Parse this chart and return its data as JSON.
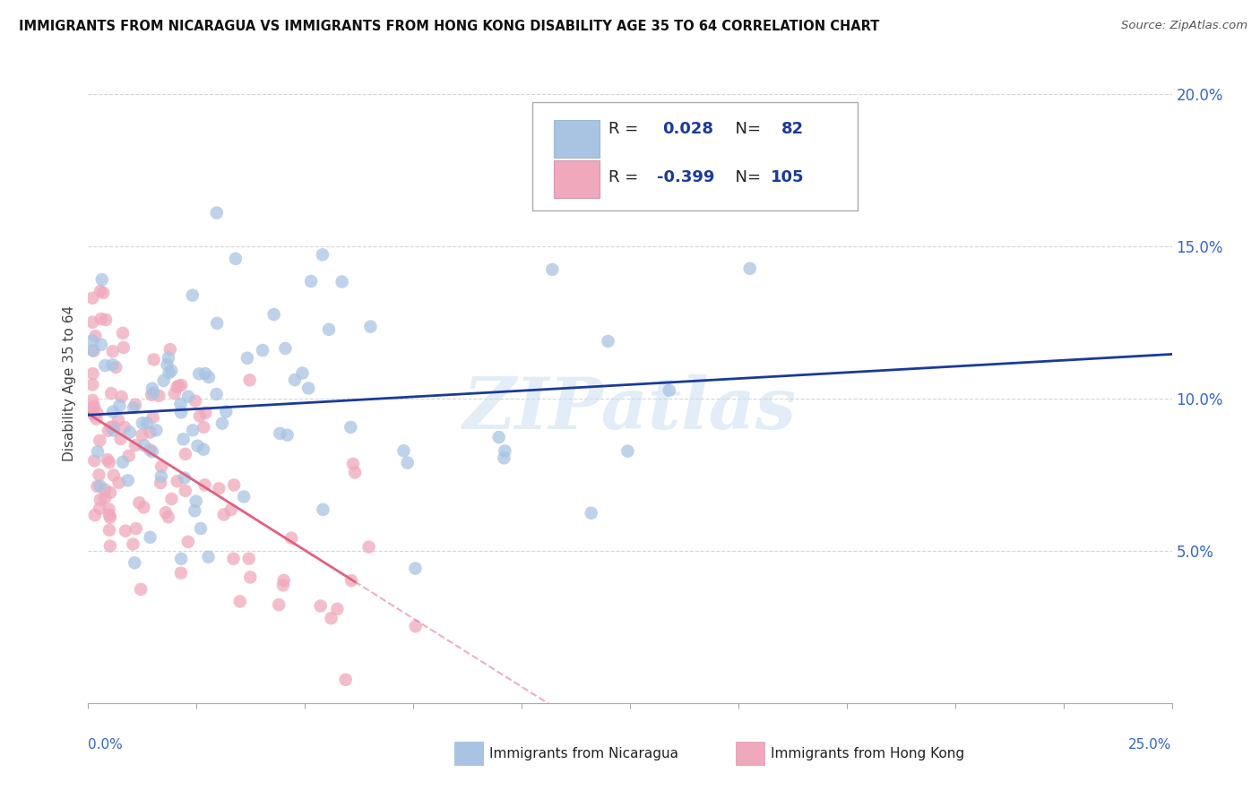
{
  "title": "IMMIGRANTS FROM NICARAGUA VS IMMIGRANTS FROM HONG KONG DISABILITY AGE 35 TO 64 CORRELATION CHART",
  "source": "Source: ZipAtlas.com",
  "ylabel": "Disability Age 35 to 64",
  "xlim": [
    0.0,
    0.25
  ],
  "ylim": [
    0.0,
    0.21
  ],
  "r_nicaragua": 0.028,
  "n_nicaragua": 82,
  "r_hong_kong": -0.399,
  "n_hong_kong": 105,
  "color_nicaragua": "#a8c4e2",
  "color_hong_kong": "#f0a8bc",
  "color_line_nicaragua": "#1a3a9a",
  "color_line_hong_kong": "#e06080",
  "watermark": "ZIPatlas",
  "background_color": "#ffffff",
  "grid_color": "#cccccc",
  "legend_text_color": "#1a3a9a",
  "ytick_vals": [
    0.05,
    0.1,
    0.15,
    0.2
  ],
  "ytick_labels": [
    "5.0%",
    "10.0%",
    "15.0%",
    "20.0%"
  ]
}
